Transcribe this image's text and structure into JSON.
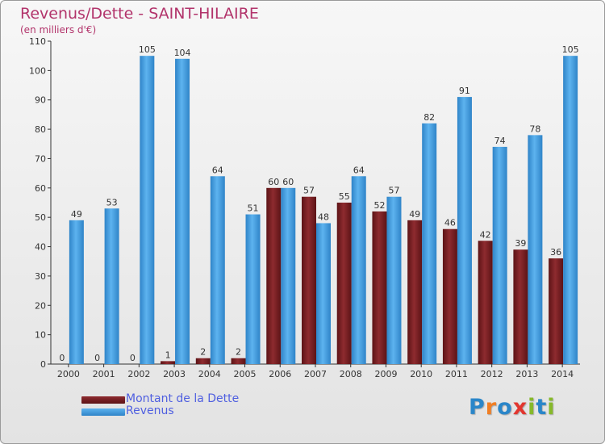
{
  "chart_data": {
    "type": "bar",
    "title": "Revenus/Dette - SAINT-HILAIRE",
    "subtitle": "(en milliers d'€)",
    "xlabel": "",
    "ylabel": "",
    "ylim": [
      0,
      110
    ],
    "yticks": [
      0,
      10,
      20,
      30,
      40,
      50,
      60,
      70,
      80,
      90,
      100,
      110
    ],
    "grid": false,
    "legend_position": "bottom-left",
    "categories": [
      "2000",
      "2001",
      "2002",
      "2003",
      "2004",
      "2005",
      "2006",
      "2007",
      "2008",
      "2009",
      "2010",
      "2011",
      "2012",
      "2013",
      "2014"
    ],
    "series": [
      {
        "name": "Montant de la Dette",
        "color": "#7a1f24",
        "values": [
          0,
          0,
          0,
          1,
          2,
          2,
          60,
          57,
          55,
          52,
          49,
          46,
          42,
          39,
          36
        ]
      },
      {
        "name": "Revenus",
        "color": "#4aa3e6",
        "values": [
          49,
          53,
          105,
          104,
          64,
          51,
          60,
          48,
          64,
          57,
          82,
          91,
          74,
          78,
          105
        ]
      }
    ]
  },
  "branding": {
    "logo_letters": [
      "P",
      "r",
      "o",
      "x",
      "i",
      "t",
      "i"
    ]
  }
}
